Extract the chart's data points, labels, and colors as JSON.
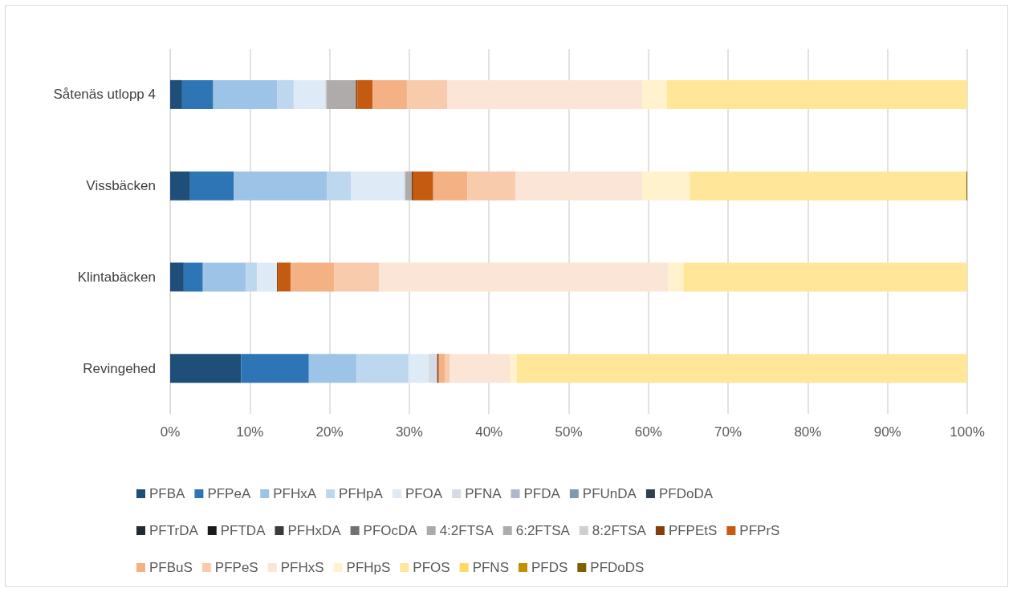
{
  "chart_data": {
    "type": "bar",
    "orientation": "horizontal",
    "stacked": true,
    "categories": [
      "Såtenäs utlopp 4",
      "Vissbäcken",
      "Klintabäcken",
      "Revingehed"
    ],
    "xlim": [
      0,
      100
    ],
    "xticks": [
      {
        "value": 0,
        "label": "0%"
      },
      {
        "value": 10,
        "label": "10%"
      },
      {
        "value": 20,
        "label": "20%"
      },
      {
        "value": 30,
        "label": "30%"
      },
      {
        "value": 40,
        "label": "40%"
      },
      {
        "value": 50,
        "label": "50%"
      },
      {
        "value": 60,
        "label": "60%"
      },
      {
        "value": 70,
        "label": "70%"
      },
      {
        "value": 80,
        "label": "80%"
      },
      {
        "value": 90,
        "label": "90%"
      },
      {
        "value": 100,
        "label": "100%"
      }
    ],
    "grid": "x",
    "legend": "bottom",
    "series": [
      {
        "name": "PFBA",
        "color": "#1f4e79",
        "values": [
          1.5,
          2.5,
          1.7,
          8.9
        ]
      },
      {
        "name": "PFPeA",
        "color": "#2e75b6",
        "values": [
          3.9,
          5.5,
          2.4,
          8.5
        ]
      },
      {
        "name": "PFHxA",
        "color": "#9dc3e6",
        "values": [
          8.0,
          11.7,
          5.4,
          6.0
        ]
      },
      {
        "name": "PFHpA",
        "color": "#bdd7ee",
        "values": [
          2.1,
          3.0,
          1.4,
          6.5
        ]
      },
      {
        "name": "PFOA",
        "color": "#deebf7",
        "values": [
          3.9,
          6.6,
          2.5,
          2.5
        ]
      },
      {
        "name": "PFNA",
        "color": "#d6dce5",
        "values": [
          0.2,
          0.2,
          null,
          1.1
        ]
      },
      {
        "name": "PFDA",
        "color": "#adb9ca",
        "values": [
          null,
          null,
          null,
          null
        ]
      },
      {
        "name": "PFUnDA",
        "color": "#8497b0",
        "values": [
          null,
          null,
          null,
          null
        ]
      },
      {
        "name": "PFDoDA",
        "color": "#333f50",
        "values": [
          null,
          null,
          null,
          null
        ]
      },
      {
        "name": "PFTrDA",
        "color": "#222a35",
        "values": [
          null,
          null,
          null,
          null
        ]
      },
      {
        "name": "PFTDA",
        "color": "#1a1a1a",
        "values": [
          null,
          null,
          null,
          null
        ]
      },
      {
        "name": "PFHxDA",
        "color": "#3b3b3b",
        "values": [
          null,
          null,
          null,
          null
        ]
      },
      {
        "name": "PFOcDA",
        "color": "#767171",
        "values": [
          null,
          null,
          null,
          null
        ]
      },
      {
        "name": "4:2FTSA",
        "color": "#aeaaaa",
        "values": [
          null,
          null,
          null,
          null
        ]
      },
      {
        "name": "6:2FTSA",
        "color": "#afabab",
        "values": [
          3.7,
          0.8,
          null,
          null
        ]
      },
      {
        "name": "8:2FTSA",
        "color": "#d0cece",
        "values": [
          null,
          null,
          null,
          null
        ]
      },
      {
        "name": "PFPEtS",
        "color": "#843c0c",
        "values": [
          0.2,
          0.2,
          0.1,
          0.2
        ]
      },
      {
        "name": "PFPrS",
        "color": "#c55a11",
        "values": [
          1.9,
          2.5,
          1.6,
          null
        ]
      },
      {
        "name": "PFBuS",
        "color": "#f4b183",
        "values": [
          4.3,
          4.3,
          5.5,
          0.8
        ]
      },
      {
        "name": "PFPeS",
        "color": "#f8cbad",
        "values": [
          5.1,
          6.0,
          5.6,
          0.6
        ]
      },
      {
        "name": "PFHxS",
        "color": "#fbe5d6",
        "values": [
          24.4,
          15.9,
          36.3,
          7.5
        ]
      },
      {
        "name": "PFHpS",
        "color": "#fff2cc",
        "values": [
          3.1,
          6.0,
          1.9,
          0.9
        ]
      },
      {
        "name": "PFOS",
        "color": "#ffe699",
        "values": [
          37.7,
          34.7,
          35.6,
          56.5
        ]
      },
      {
        "name": "PFNS",
        "color": "#ffd966",
        "values": [
          null,
          null,
          null,
          null
        ]
      },
      {
        "name": "PFDS",
        "color": "#bf9000",
        "values": [
          null,
          null,
          null,
          null
        ]
      },
      {
        "name": "PFDoDS",
        "color": "#7f6000",
        "values": [
          null,
          0.1,
          null,
          null
        ]
      }
    ]
  }
}
